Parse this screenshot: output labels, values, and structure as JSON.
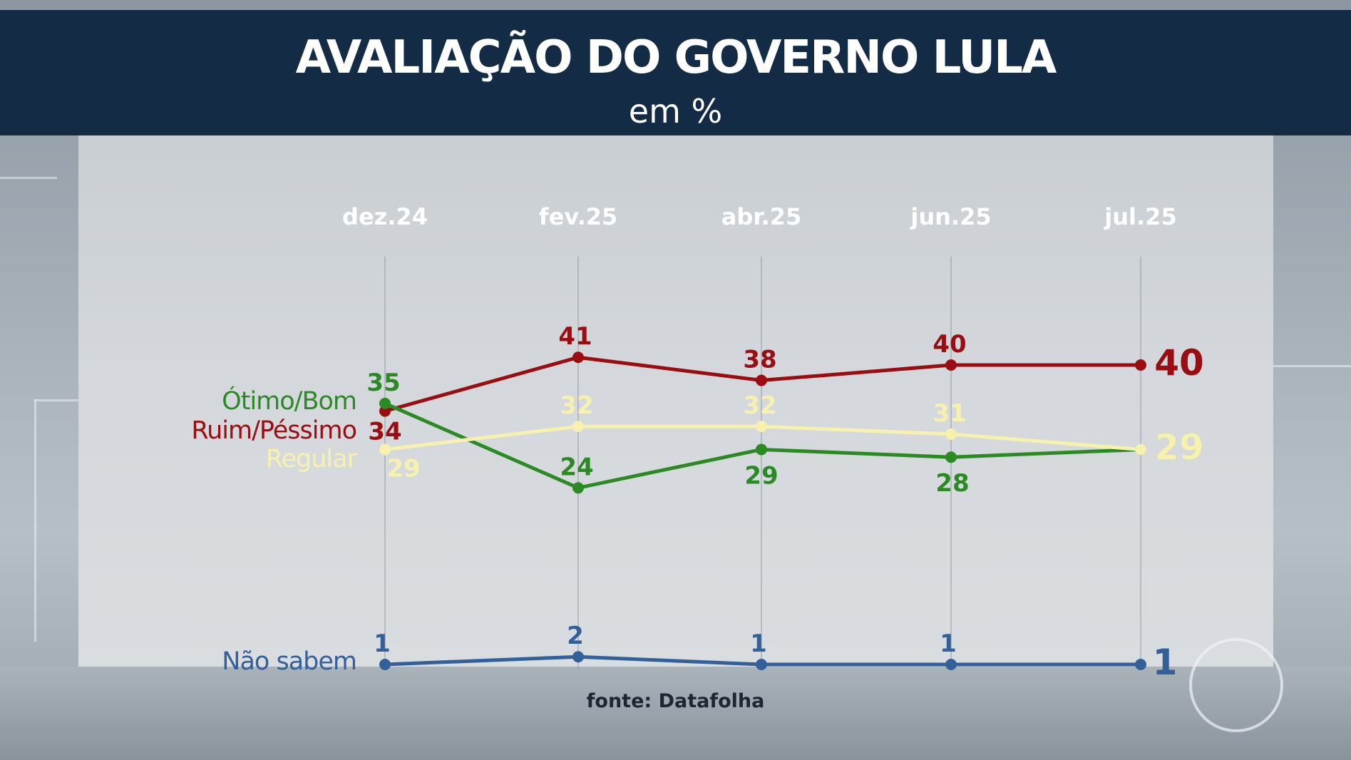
{
  "header": {
    "title": "AVALIAÇÃO DO GOVERNO LULA",
    "subtitle": "em %"
  },
  "source": "fonte: Datafolha",
  "chart_data": {
    "type": "line",
    "title": "AVALIAÇÃO DO GOVERNO LULA",
    "subtitle": "em %",
    "categories": [
      "dez.24",
      "fev.25",
      "abr.25",
      "jun.25",
      "jul.25"
    ],
    "ylim": [
      0,
      45
    ],
    "grid": false,
    "series": [
      {
        "name": "Ruim/Péssimo",
        "color": "#9a0d10",
        "values": [
          34,
          41,
          38,
          40,
          40
        ]
      },
      {
        "name": "Ótimo/Bom",
        "color": "#2c8a25",
        "values": [
          35,
          24,
          29,
          28,
          29
        ]
      },
      {
        "name": "Regular",
        "color": "#f7f1b0",
        "values": [
          29,
          32,
          32,
          31,
          29
        ]
      },
      {
        "name": "Não sabem",
        "color": "#34609a",
        "values": [
          1,
          2,
          1,
          1,
          1
        ]
      }
    ]
  }
}
